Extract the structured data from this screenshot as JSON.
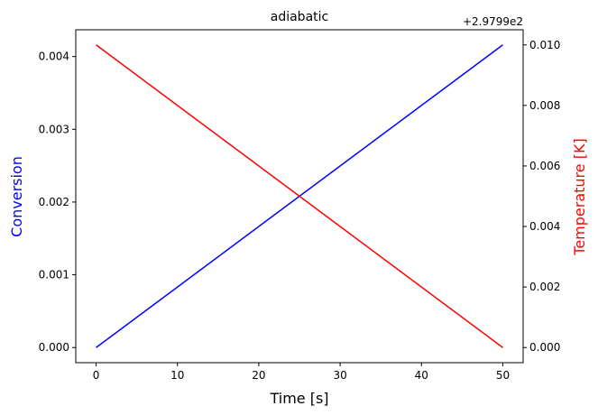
{
  "chart_data": {
    "type": "line",
    "title": "adiabatic",
    "xlabel": "Time [s]",
    "ylabel_left": "Conversion",
    "ylabel_right": "Temperature [K]",
    "right_offset_label": "+2.9799e2",
    "xlim": [
      -2.5,
      52.5
    ],
    "ylim_left": [
      -0.000208,
      0.004368
    ],
    "ylim_right": [
      -0.0005,
      0.0105
    ],
    "x_ticks": [
      0,
      10,
      20,
      30,
      40,
      50
    ],
    "y_left_ticks": [
      0.0,
      0.001,
      0.002,
      0.003,
      0.004
    ],
    "y_left_tick_labels": [
      "0.000",
      "0.001",
      "0.002",
      "0.003",
      "0.004"
    ],
    "y_right_ticks": [
      0.0,
      0.002,
      0.004,
      0.006,
      0.008,
      0.01
    ],
    "y_right_tick_labels": [
      "0.000",
      "0.002",
      "0.004",
      "0.006",
      "0.008",
      "0.010"
    ],
    "grid": false,
    "series": [
      {
        "axis": "left",
        "color": "#0000ff",
        "x": [
          0,
          50
        ],
        "y": [
          0.0,
          0.00416
        ]
      },
      {
        "axis": "right",
        "color": "#ff0000",
        "x": [
          0,
          50
        ],
        "y": [
          0.01,
          0.0
        ]
      }
    ],
    "colors": {
      "left_axis_label": "#0000ff",
      "right_axis_label": "#ff0000"
    }
  }
}
